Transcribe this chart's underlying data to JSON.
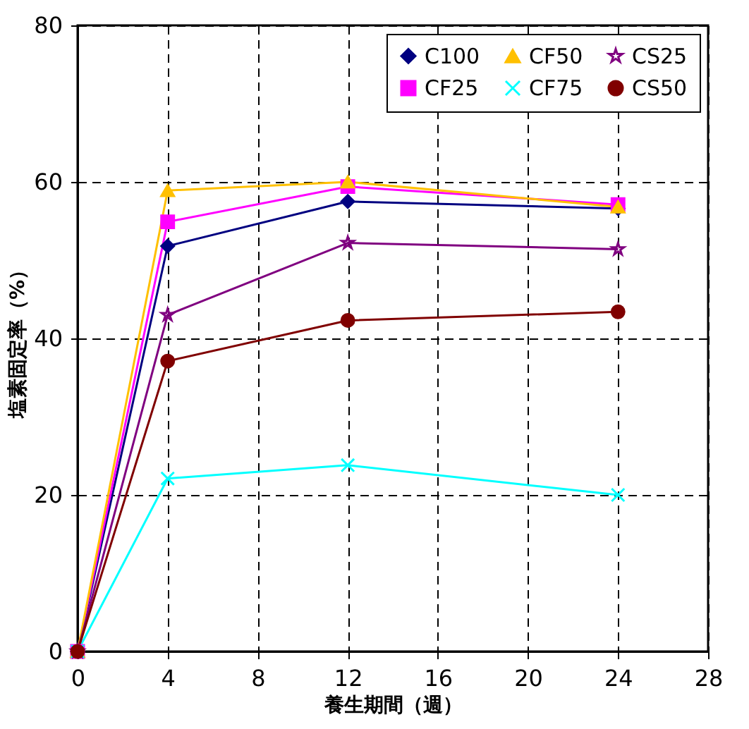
{
  "chart_data": {
    "type": "line",
    "xlabel": "養生期間（週）",
    "ylabel": "塩素固定率（%）",
    "x": [
      0,
      4,
      12,
      24
    ],
    "series": [
      {
        "name": "C100",
        "color": "#000080",
        "marker": "diamond",
        "values": [
          0,
          51.8,
          57.5,
          56.6
        ]
      },
      {
        "name": "CF25",
        "color": "#ff00ff",
        "marker": "square",
        "values": [
          0,
          54.9,
          59.4,
          57.1
        ]
      },
      {
        "name": "CF50",
        "color": "#ffc000",
        "marker": "triangle",
        "values": [
          0,
          58.9,
          60,
          56.8
        ]
      },
      {
        "name": "CF75",
        "color": "#00ffff",
        "marker": "cross",
        "values": [
          0,
          22.1,
          23.8,
          20
        ]
      },
      {
        "name": "CS25",
        "color": "#800080",
        "marker": "star",
        "values": [
          0,
          43.0,
          52.2,
          51.4
        ]
      },
      {
        "name": "CS50",
        "color": "#800000",
        "marker": "circle",
        "values": [
          0,
          37.1,
          42.3,
          43.4
        ]
      }
    ],
    "xlim": [
      0,
      28
    ],
    "xticks": [
      0,
      4,
      8,
      12,
      16,
      20,
      24,
      28
    ],
    "ylim": [
      0,
      80
    ],
    "yticks": [
      0,
      20,
      40,
      60,
      80
    ],
    "grid": true,
    "legend": "top right",
    "line_style": "solid"
  }
}
